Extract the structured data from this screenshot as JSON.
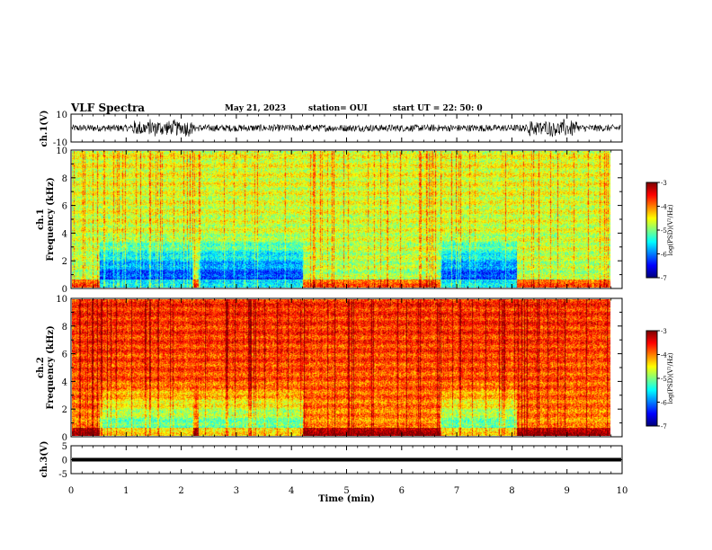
{
  "header": {
    "title": "VLF Spectra",
    "date": "May 21, 2023",
    "station": "station= OUI",
    "start": "start  UT  =   22: 50: 0"
  },
  "chart_data": [
    {
      "type": "line",
      "panel": "ch1-waveform",
      "ylabel": "ch.1(V)",
      "ylim": [
        -10,
        10
      ],
      "y_ticks": [
        "10",
        "-10"
      ],
      "xlim": [
        0,
        10
      ],
      "signal_amplitude_v": 2.5,
      "burst_intervals_min": [
        [
          1.1,
          2.2
        ],
        [
          8.3,
          9.2
        ]
      ]
    },
    {
      "type": "heatmap",
      "panel": "ch1-spectrogram",
      "ylabel": "ch.1\nFrequency  (kHz)",
      "ylim": [
        0,
        10
      ],
      "y_ticks": [
        "0",
        "2",
        "4",
        "6",
        "8",
        "10"
      ],
      "xlim": [
        0,
        10
      ],
      "data_end_min": 9.8,
      "colorbar": {
        "label": "log(PSD)(V²/Hz)",
        "range": [
          -7,
          -3
        ],
        "ticks": [
          "-3",
          "-4",
          "-5",
          "-6",
          "-7"
        ]
      },
      "quiet_intervals_min": [
        [
          0.5,
          2.2
        ],
        [
          2.3,
          4.2
        ],
        [
          6.7,
          8.1
        ]
      ]
    },
    {
      "type": "heatmap",
      "panel": "ch2-spectrogram",
      "ylabel": "ch.2\nFrequency  (kHz)",
      "ylim": [
        0,
        10
      ],
      "y_ticks": [
        "0",
        "2",
        "4",
        "6",
        "8",
        "10"
      ],
      "xlim": [
        0,
        10
      ],
      "data_end_min": 9.8,
      "colorbar": {
        "label": "log(PSD)(V²/Hz)",
        "range": [
          -7,
          -3
        ],
        "ticks": [
          "-3",
          "-4",
          "-5",
          "-6",
          "-7"
        ]
      },
      "quiet_intervals_min": [
        [
          0.5,
          2.2
        ],
        [
          2.3,
          4.2
        ],
        [
          6.7,
          8.1
        ]
      ]
    },
    {
      "type": "line",
      "panel": "ch3-waveform",
      "ylabel": "ch.3(V)",
      "ylim": [
        -5,
        5
      ],
      "y_ticks": [
        "5",
        "0",
        "-5"
      ],
      "xlim": [
        0,
        10
      ],
      "constant_value_v": 0
    }
  ],
  "x_axis": {
    "label": "Time  (min)",
    "ticks": [
      "0",
      "1",
      "2",
      "3",
      "4",
      "5",
      "6",
      "7",
      "8",
      "9",
      "10"
    ]
  }
}
